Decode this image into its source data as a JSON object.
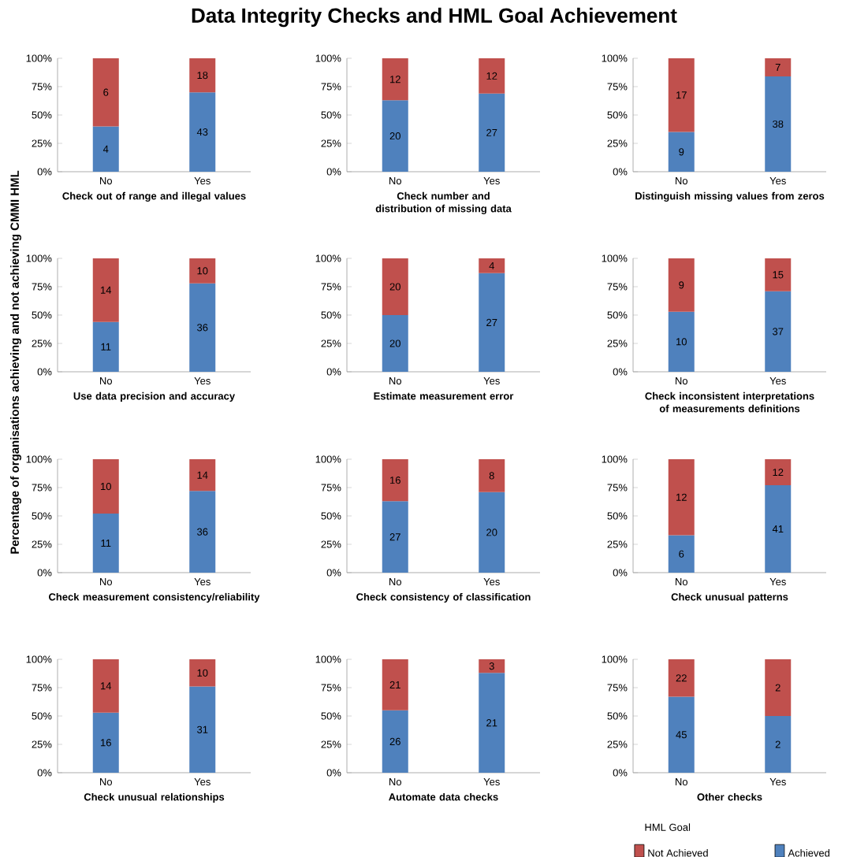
{
  "chart_data": [
    {
      "type": "bar",
      "stacked": true,
      "title": "Data Integrity Checks and HML Goal Achievement",
      "ylabel": "Percentage of organisations achieving and not achieving CMMI HML",
      "xlabel": "Check out of range and illegal values",
      "categories": [
        "No",
        "Yes"
      ],
      "ylim": [
        0,
        100
      ],
      "yticks": [
        {
          "value": 0,
          "label": "0%"
        },
        {
          "value": 25,
          "label": "25%"
        },
        {
          "value": 50,
          "label": "50%"
        },
        {
          "value": 75,
          "label": "75%"
        },
        {
          "value": 100,
          "label": "100%"
        }
      ],
      "series": [
        {
          "color": "#4f81bd",
          "values": [
            40,
            70
          ]
        },
        {
          "color": "#c0504d",
          "values": [
            60,
            30
          ]
        }
      ],
      "annotations": [
        "4",
        "43",
        "6",
        "18"
      ]
    },
    {
      "type": "bar",
      "stacked": true,
      "xlabel": "Check number and distribution of missing data",
      "categories": [
        "No",
        "Yes"
      ],
      "ylim": [
        0,
        100
      ],
      "yticks": [
        {
          "value": 0,
          "label": "0%"
        },
        {
          "value": 25,
          "label": "25%"
        },
        {
          "value": 50,
          "label": "50%"
        },
        {
          "value": 75,
          "label": "75%"
        },
        {
          "value": 100,
          "label": "100%"
        }
      ],
      "series": [
        {
          "color": "#4f81bd",
          "values": [
            63,
            69
          ]
        },
        {
          "color": "#c0504d",
          "values": [
            37,
            31
          ]
        }
      ],
      "annotations": [
        "20",
        "27",
        "12",
        "12"
      ]
    },
    {
      "type": "bar",
      "stacked": true,
      "xlabel": "Distinguish missing values from zeros",
      "categories": [
        "No",
        "Yes"
      ],
      "ylim": [
        0,
        100
      ],
      "yticks": [
        {
          "value": 0,
          "label": "0%"
        },
        {
          "value": 25,
          "label": "25%"
        },
        {
          "value": 50,
          "label": "50%"
        },
        {
          "value": 75,
          "label": "75%"
        },
        {
          "value": 100,
          "label": "100%"
        }
      ],
      "series": [
        {
          "color": "#4f81bd",
          "values": [
            35,
            84
          ]
        },
        {
          "color": "#c0504d",
          "values": [
            65,
            16
          ]
        }
      ],
      "annotations": [
        "9",
        "38",
        "17",
        "7"
      ]
    },
    {
      "type": "bar",
      "stacked": true,
      "xlabel": "Use data precision and accuracy",
      "categories": [
        "No",
        "Yes"
      ],
      "ylim": [
        0,
        100
      ],
      "yticks": [
        {
          "value": 0,
          "label": "0%"
        },
        {
          "value": 25,
          "label": "25%"
        },
        {
          "value": 50,
          "label": "50%"
        },
        {
          "value": 75,
          "label": "75%"
        },
        {
          "value": 100,
          "label": "100%"
        }
      ],
      "series": [
        {
          "color": "#4f81bd",
          "values": [
            44,
            78
          ]
        },
        {
          "color": "#c0504d",
          "values": [
            56,
            22
          ]
        }
      ],
      "annotations": [
        "11",
        "36",
        "14",
        "10"
      ]
    },
    {
      "type": "bar",
      "stacked": true,
      "xlabel": "Estimate measurement error",
      "categories": [
        "No",
        "Yes"
      ],
      "ylim": [
        0,
        100
      ],
      "yticks": [
        {
          "value": 0,
          "label": "0%"
        },
        {
          "value": 25,
          "label": "25%"
        },
        {
          "value": 50,
          "label": "50%"
        },
        {
          "value": 75,
          "label": "75%"
        },
        {
          "value": 100,
          "label": "100%"
        }
      ],
      "series": [
        {
          "color": "#4f81bd",
          "values": [
            50,
            87
          ]
        },
        {
          "color": "#c0504d",
          "values": [
            50,
            13
          ]
        }
      ],
      "annotations": [
        "20",
        "27",
        "20",
        "4"
      ]
    },
    {
      "type": "bar",
      "stacked": true,
      "xlabel": "Check inconsistent interpretations of measurements definitions",
      "categories": [
        "No",
        "Yes"
      ],
      "ylim": [
        0,
        100
      ],
      "yticks": [
        {
          "value": 0,
          "label": "0%"
        },
        {
          "value": 25,
          "label": "25%"
        },
        {
          "value": 50,
          "label": "50%"
        },
        {
          "value": 75,
          "label": "75%"
        },
        {
          "value": 100,
          "label": "100%"
        }
      ],
      "series": [
        {
          "color": "#4f81bd",
          "values": [
            53,
            71
          ]
        },
        {
          "color": "#c0504d",
          "values": [
            47,
            29
          ]
        }
      ],
      "annotations": [
        "10",
        "37",
        "9",
        "15"
      ]
    },
    {
      "type": "bar",
      "stacked": true,
      "xlabel": "Check measurement consistency/reliability",
      "categories": [
        "No",
        "Yes"
      ],
      "ylim": [
        0,
        100
      ],
      "yticks": [
        {
          "value": 0,
          "label": "0%"
        },
        {
          "value": 25,
          "label": "25%"
        },
        {
          "value": 50,
          "label": "50%"
        },
        {
          "value": 75,
          "label": "75%"
        },
        {
          "value": 100,
          "label": "100%"
        }
      ],
      "series": [
        {
          "color": "#4f81bd",
          "values": [
            52,
            72
          ]
        },
        {
          "color": "#c0504d",
          "values": [
            48,
            28
          ]
        }
      ],
      "annotations": [
        "11",
        "36",
        "10",
        "14"
      ]
    },
    {
      "type": "bar",
      "stacked": true,
      "xlabel": "Check consistency of classification",
      "categories": [
        "No",
        "Yes"
      ],
      "ylim": [
        0,
        100
      ],
      "yticks": [
        {
          "value": 0,
          "label": "0%"
        },
        {
          "value": 25,
          "label": "25%"
        },
        {
          "value": 50,
          "label": "50%"
        },
        {
          "value": 75,
          "label": "75%"
        },
        {
          "value": 100,
          "label": "100%"
        }
      ],
      "series": [
        {
          "color": "#4f81bd",
          "values": [
            63,
            71
          ]
        },
        {
          "color": "#c0504d",
          "values": [
            37,
            29
          ]
        }
      ],
      "annotations": [
        "27",
        "20",
        "16",
        "8"
      ]
    },
    {
      "type": "bar",
      "stacked": true,
      "xlabel": "Check unusual patterns",
      "categories": [
        "No",
        "Yes"
      ],
      "ylim": [
        0,
        100
      ],
      "yticks": [
        {
          "value": 0,
          "label": "0%"
        },
        {
          "value": 25,
          "label": "25%"
        },
        {
          "value": 50,
          "label": "50%"
        },
        {
          "value": 75,
          "label": "75%"
        },
        {
          "value": 100,
          "label": "100%"
        }
      ],
      "series": [
        {
          "color": "#4f81bd",
          "values": [
            33,
            77
          ]
        },
        {
          "color": "#c0504d",
          "values": [
            67,
            23
          ]
        }
      ],
      "annotations": [
        "6",
        "41",
        "12",
        "12"
      ]
    },
    {
      "type": "bar",
      "stacked": true,
      "xlabel": "Check unusual relationships",
      "categories": [
        "No",
        "Yes"
      ],
      "ylim": [
        0,
        100
      ],
      "yticks": [
        {
          "value": 0,
          "label": "0%"
        },
        {
          "value": 25,
          "label": "25%"
        },
        {
          "value": 50,
          "label": "50%"
        },
        {
          "value": 75,
          "label": "75%"
        },
        {
          "value": 100,
          "label": "100%"
        }
      ],
      "series": [
        {
          "color": "#4f81bd",
          "values": [
            53,
            76
          ]
        },
        {
          "color": "#c0504d",
          "values": [
            47,
            24
          ]
        }
      ],
      "annotations": [
        "16",
        "31",
        "14",
        "10"
      ]
    },
    {
      "type": "bar",
      "stacked": true,
      "xlabel": "Automate data checks",
      "categories": [
        "No",
        "Yes"
      ],
      "ylim": [
        0,
        100
      ],
      "yticks": [
        {
          "value": 0,
          "label": "0%"
        },
        {
          "value": 25,
          "label": "25%"
        },
        {
          "value": 50,
          "label": "50%"
        },
        {
          "value": 75,
          "label": "75%"
        },
        {
          "value": 100,
          "label": "100%"
        }
      ],
      "series": [
        {
          "color": "#4f81bd",
          "values": [
            55,
            88
          ]
        },
        {
          "color": "#c0504d",
          "values": [
            45,
            12
          ]
        }
      ],
      "annotations": [
        "26",
        "21",
        "21",
        "3"
      ]
    },
    {
      "type": "bar",
      "stacked": true,
      "xlabel": "Other checks",
      "categories": [
        "No",
        "Yes"
      ],
      "ylim": [
        0,
        100
      ],
      "yticks": [
        {
          "value": 0,
          "label": "0%"
        },
        {
          "value": 25,
          "label": "25%"
        },
        {
          "value": 50,
          "label": "50%"
        },
        {
          "value": 75,
          "label": "75%"
        },
        {
          "value": 100,
          "label": "100%"
        }
      ],
      "legend": "bottom right",
      "legend_title": "HML Goal",
      "series": [
        {
          "name": "Achieved",
          "color": "#4f81bd",
          "values": [
            67,
            50
          ]
        },
        {
          "name": "Not Achieved",
          "color": "#c0504d",
          "values": [
            33,
            50
          ]
        }
      ],
      "annotations": [
        "45",
        "2",
        "22",
        "2"
      ]
    }
  ]
}
